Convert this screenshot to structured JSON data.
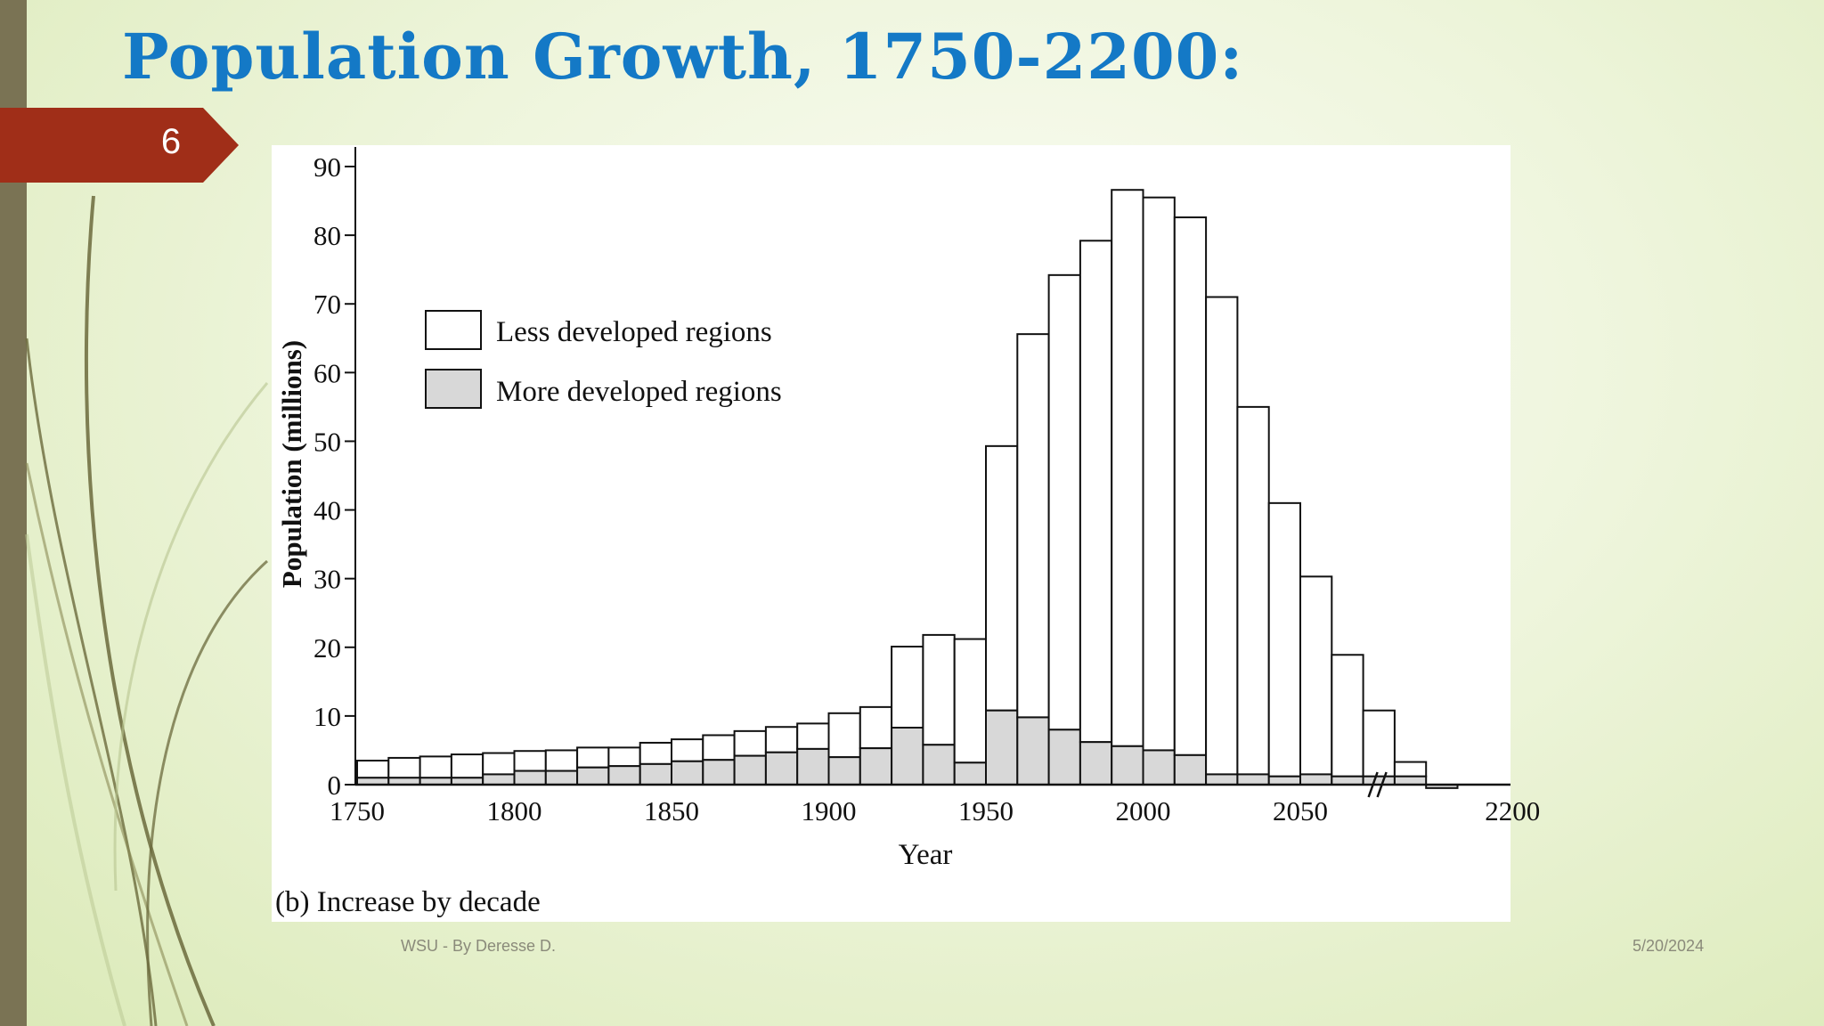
{
  "slide": {
    "title": "Population Growth, 1750-2200:",
    "number": "6",
    "footer_left": "WSU - By Deresse D.",
    "footer_right": "5/20/2024"
  },
  "colors": {
    "title": "#1479c6",
    "number_tab": "#a02e18",
    "left_bar": "#7a7354",
    "less_developed_fill": "#ffffff",
    "more_developed_fill": "#d8d8d8"
  },
  "chart_data": {
    "type": "bar",
    "stacked": true,
    "title": "",
    "caption": "(b) Increase by decade",
    "xlabel": "Year",
    "ylabel": "Population (millions)",
    "ylim": [
      0,
      90
    ],
    "yticks": [
      "0",
      "10",
      "20",
      "30",
      "40",
      "50",
      "60",
      "70",
      "80",
      "90"
    ],
    "xticks": [
      "1750",
      "1800",
      "1850",
      "1900",
      "1950",
      "2000",
      "2050",
      "2200"
    ],
    "axis_break_after": 2070,
    "legend_position": "top-left",
    "categories": [
      1750,
      1760,
      1770,
      1780,
      1790,
      1800,
      1810,
      1820,
      1830,
      1840,
      1850,
      1860,
      1870,
      1880,
      1890,
      1900,
      1910,
      1920,
      1930,
      1940,
      1950,
      1960,
      1970,
      1980,
      1990,
      2000,
      2010,
      2020,
      2030,
      2040,
      2050,
      2060,
      2070,
      2080,
      2090
    ],
    "series": [
      {
        "name": "More developed regions",
        "values": [
          1,
          1,
          1,
          1,
          1.5,
          2,
          2,
          2.5,
          2.7,
          3,
          3.4,
          3.6,
          4.2,
          4.7,
          5.2,
          4,
          5.3,
          8.3,
          5.8,
          3.2,
          10.8,
          9.8,
          8,
          6.2,
          5.6,
          5,
          4.3,
          1.5,
          1.5,
          1.2,
          1.5,
          1.2,
          1.2,
          1.2,
          -0.5
        ]
      },
      {
        "name": "Less developed regions",
        "values": [
          2.5,
          2.9,
          3.1,
          3.4,
          3.1,
          2.9,
          3,
          2.9,
          2.7,
          3.1,
          3.2,
          3.6,
          3.6,
          3.7,
          3.7,
          6.4,
          6,
          11.8,
          16,
          18,
          38.5,
          55.8,
          66.2,
          73,
          81,
          80.5,
          78.3,
          69.5,
          53.5,
          39.8,
          28.8,
          17.7,
          9.6,
          2.1,
          -0.2
        ]
      }
    ]
  }
}
